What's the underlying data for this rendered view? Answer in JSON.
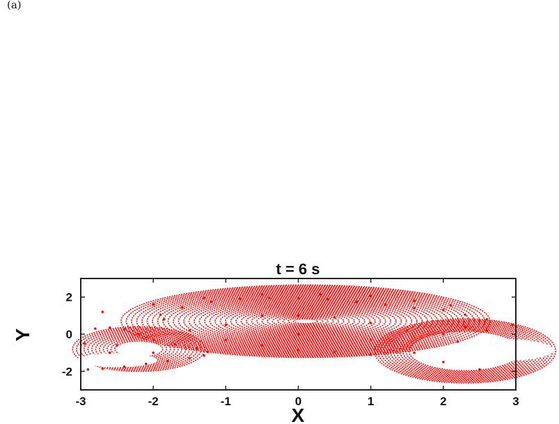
{
  "panel_label": "(a)",
  "chart_data": {
    "type": "scatter",
    "title": "t = 6 s",
    "xlabel": "X",
    "ylabel": "Y",
    "xlim": [
      -3,
      3
    ],
    "ylim": [
      -3,
      3
    ],
    "xticks": [
      -3,
      -2,
      -1,
      0,
      1,
      2,
      3
    ],
    "yticks": [
      -2,
      0,
      2
    ],
    "xtick_labels": [
      "-3",
      "-2",
      "-1",
      "0",
      "1",
      "2",
      "3"
    ],
    "ytick_labels": [
      "-2",
      "0",
      "2"
    ],
    "grid": false,
    "marker_color": "#ff0000",
    "series": [
      {
        "values": [
          {
            "x": -2.8,
            "y": 0.3
          },
          {
            "x": -2.6,
            "y": 0.35
          },
          {
            "x": -2.4,
            "y": 0.25
          },
          {
            "x": -2.2,
            "y": 0.0
          },
          {
            "x": -2.0,
            "y": -0.3
          },
          {
            "x": -1.7,
            "y": -0.55
          },
          {
            "x": -1.4,
            "y": -0.75
          },
          {
            "x": -1.25,
            "y": -0.95
          },
          {
            "x": -1.3,
            "y": -1.15
          },
          {
            "x": -1.5,
            "y": -1.3
          },
          {
            "x": -1.8,
            "y": -1.45
          },
          {
            "x": -2.1,
            "y": -1.6
          },
          {
            "x": -2.4,
            "y": -1.75
          },
          {
            "x": -2.7,
            "y": -1.85
          },
          {
            "x": -2.9,
            "y": -1.9
          },
          {
            "x": -2.95,
            "y": -0.5
          },
          {
            "x": -2.5,
            "y": -0.6
          },
          {
            "x": -2.0,
            "y": -1.0
          },
          {
            "x": -2.6,
            "y": -1.0
          },
          {
            "x": -1.9,
            "y": 1.05
          },
          {
            "x": -1.6,
            "y": 1.45
          },
          {
            "x": -1.2,
            "y": 1.75
          },
          {
            "x": -0.8,
            "y": 1.9
          },
          {
            "x": -0.4,
            "y": 1.95
          },
          {
            "x": 0.0,
            "y": 1.95
          },
          {
            "x": 0.4,
            "y": 1.9
          },
          {
            "x": 0.8,
            "y": 1.75
          },
          {
            "x": 1.2,
            "y": 1.6
          },
          {
            "x": 1.6,
            "y": 1.4
          },
          {
            "x": 2.0,
            "y": 1.3
          },
          {
            "x": 2.3,
            "y": 1.05
          },
          {
            "x": 2.6,
            "y": 0.8
          },
          {
            "x": 2.95,
            "y": 0.5
          },
          {
            "x": 2.0,
            "y": 0.0
          },
          {
            "x": 2.3,
            "y": 0.4
          },
          {
            "x": 2.6,
            "y": 0.2
          },
          {
            "x": 2.2,
            "y": -0.4
          },
          {
            "x": 1.6,
            "y": -1.0
          },
          {
            "x": 2.0,
            "y": -1.5
          },
          {
            "x": 2.5,
            "y": -1.9
          },
          {
            "x": 3.0,
            "y": -2.0
          },
          {
            "x": 1.0,
            "y": -1.1
          },
          {
            "x": 0.5,
            "y": -0.95
          },
          {
            "x": 0.0,
            "y": -0.85
          },
          {
            "x": -0.5,
            "y": -0.6
          },
          {
            "x": -1.0,
            "y": -0.3
          },
          {
            "x": -1.5,
            "y": 0.2
          },
          {
            "x": -1.85,
            "y": 0.8
          },
          {
            "x": -0.5,
            "y": 1.0
          },
          {
            "x": 0.0,
            "y": 1.0
          },
          {
            "x": 0.5,
            "y": 0.9
          },
          {
            "x": 1.0,
            "y": 0.6
          },
          {
            "x": 1.5,
            "y": 0.2
          },
          {
            "x": 1.0,
            "y": -0.3
          },
          {
            "x": 0.0,
            "y": 0.0
          },
          {
            "x": -1.0,
            "y": 0.5
          },
          {
            "x": -2.7,
            "y": 1.2
          },
          {
            "x": -2.0,
            "y": 1.6
          },
          {
            "x": -1.3,
            "y": 1.95
          },
          {
            "x": -0.5,
            "y": 2.15
          },
          {
            "x": 0.3,
            "y": 2.15
          },
          {
            "x": 1.0,
            "y": 2.05
          },
          {
            "x": 1.6,
            "y": 1.8
          },
          {
            "x": 2.1,
            "y": 1.55
          }
        ]
      }
    ]
  }
}
